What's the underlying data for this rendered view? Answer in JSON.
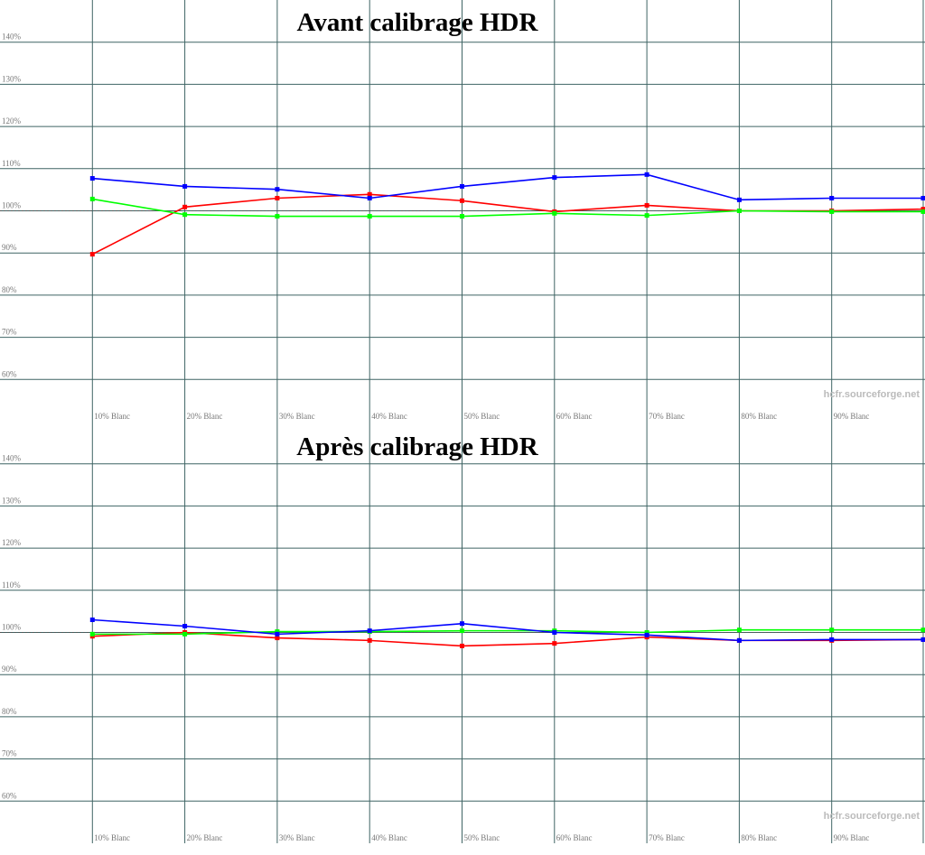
{
  "chart_data": [
    {
      "type": "line",
      "title": "Avant calibrage HDR",
      "categories": [
        "10% Blanc",
        "20% Blanc",
        "30% Blanc",
        "40% Blanc",
        "50% Blanc",
        "60% Blanc",
        "70% Blanc",
        "80% Blanc",
        "90% Blanc",
        null
      ],
      "series": [
        {
          "name": "Rouge",
          "color": "#ff0000",
          "values": [
            89.7,
            100.9,
            103,
            103.9,
            102.4,
            99.8,
            101.3,
            100,
            100,
            100.4
          ]
        },
        {
          "name": "Vert",
          "color": "#00ff00",
          "values": [
            102.8,
            99.1,
            98.7,
            98.7,
            98.7,
            99.4,
            98.9,
            100,
            99.8,
            99.8
          ]
        },
        {
          "name": "Bleu",
          "color": "#0000ff",
          "values": [
            107.7,
            105.8,
            105.1,
            103,
            105.8,
            107.9,
            108.6,
            102.6,
            103,
            103
          ]
        }
      ],
      "ylim": [
        50,
        150
      ],
      "yticks": [
        {
          "value": 60,
          "label": "60%"
        },
        {
          "value": 70,
          "label": "70%"
        },
        {
          "value": 80,
          "label": "80%"
        },
        {
          "value": 90,
          "label": "90%"
        },
        {
          "value": 100,
          "label": "100%"
        },
        {
          "value": 110,
          "label": "110%"
        },
        {
          "value": 120,
          "label": "120%"
        },
        {
          "value": 130,
          "label": "130%"
        },
        {
          "value": 140,
          "label": "140%"
        }
      ],
      "reference": 100,
      "grid": true,
      "watermark": "hcfr.sourceforge.net"
    },
    {
      "type": "line",
      "title": "Après calibrage HDR",
      "categories": [
        "10% Blanc",
        "20% Blanc",
        "30% Blanc",
        "40% Blanc",
        "50% Blanc",
        "60% Blanc",
        "70% Blanc",
        "80% Blanc",
        "90% Blanc",
        null
      ],
      "series": [
        {
          "name": "Rouge",
          "color": "#ff0000",
          "values": [
            99.1,
            100,
            98.7,
            98.1,
            96.8,
            97.4,
            98.9,
            98.1,
            98.1,
            98.3
          ]
        },
        {
          "name": "Vert",
          "color": "#00ff00",
          "values": [
            99.6,
            99.6,
            100.2,
            100.2,
            100.4,
            100.4,
            100,
            100.6,
            100.6,
            100.6
          ]
        },
        {
          "name": "Bleu",
          "color": "#0000ff",
          "values": [
            103,
            101.5,
            99.6,
            100.4,
            102.1,
            100,
            99.4,
            98.1,
            98.3,
            98.3
          ]
        }
      ],
      "ylim": [
        50,
        150
      ],
      "yticks": [
        {
          "value": 60,
          "label": "60%"
        },
        {
          "value": 70,
          "label": "70%"
        },
        {
          "value": 80,
          "label": "80%"
        },
        {
          "value": 90,
          "label": "90%"
        },
        {
          "value": 100,
          "label": "100%"
        },
        {
          "value": 110,
          "label": "110%"
        },
        {
          "value": 120,
          "label": "120%"
        },
        {
          "value": 130,
          "label": "130%"
        },
        {
          "value": 140,
          "label": "140%"
        }
      ],
      "reference": 100,
      "grid": true,
      "watermark": "hcfr.sourceforge.net"
    }
  ]
}
